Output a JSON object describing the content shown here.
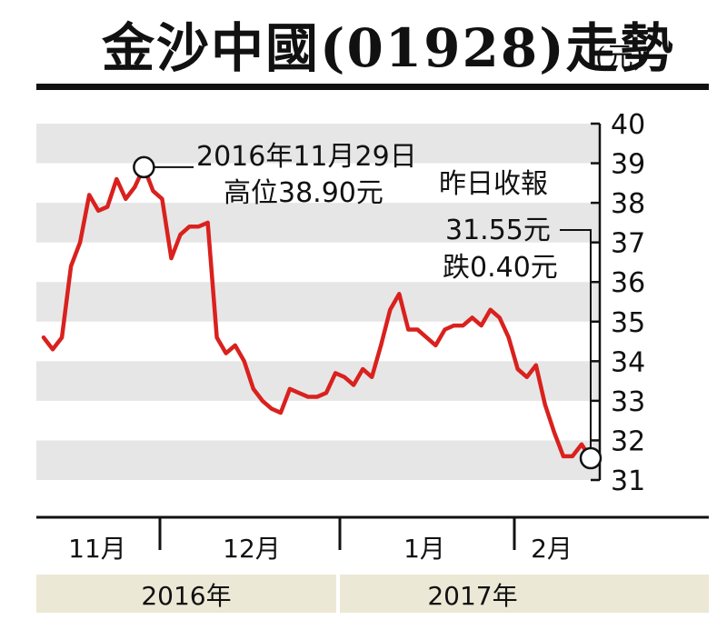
{
  "chart_data": {
    "type": "line",
    "title": "金沙中國(01928)走勢",
    "unit": "(元)",
    "ylim": [
      31,
      40
    ],
    "yticks": [
      "40",
      "39",
      "38",
      "37",
      "36",
      "35",
      "34",
      "33",
      "32",
      "31"
    ],
    "months": [
      "11月",
      "12月",
      "1月",
      "2月"
    ],
    "years": [
      "2016年",
      "2017年"
    ],
    "grid": "horizontal-bands",
    "line_color": "#d9211e",
    "values": [
      34.6,
      34.3,
      34.6,
      36.4,
      37.0,
      38.2,
      37.8,
      37.9,
      38.6,
      38.1,
      38.4,
      38.9,
      38.3,
      38.1,
      36.6,
      37.2,
      37.4,
      37.4,
      37.5,
      34.6,
      34.2,
      34.4,
      34.0,
      33.3,
      33.0,
      32.8,
      32.7,
      33.3,
      33.2,
      33.1,
      33.1,
      33.2,
      33.7,
      33.6,
      33.4,
      33.8,
      33.6,
      34.4,
      35.3,
      35.7,
      34.8,
      34.8,
      34.6,
      34.4,
      34.8,
      34.9,
      34.9,
      35.1,
      34.9,
      35.3,
      35.1,
      34.6,
      33.8,
      33.6,
      33.9,
      32.9,
      32.2,
      31.6,
      31.6,
      31.9,
      31.55
    ],
    "annotations": {
      "high": {
        "line1": "2016年11月29日",
        "line2": "高位38.90元",
        "value": 38.9
      },
      "close": {
        "line1": "昨日收報",
        "line2": "31.55元",
        "line3": "跌0.40元",
        "value": 31.55
      }
    }
  }
}
